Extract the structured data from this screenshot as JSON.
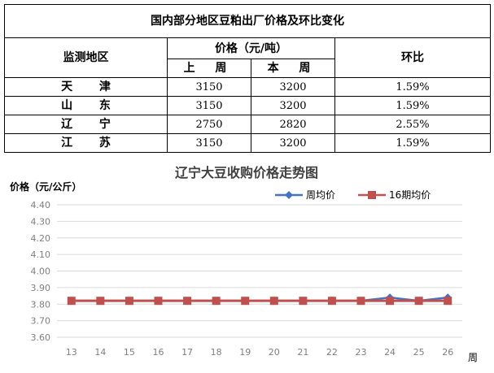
{
  "table": {
    "title": "国内部分地区豆粕出厂价格及环比变化",
    "header": {
      "region": "监测地区",
      "price": "价格（元/吨）",
      "last_week": "上  周",
      "this_week": "本  周",
      "change": "环比"
    },
    "rows": [
      {
        "region": "天 津",
        "last": "3150",
        "this": "3200",
        "change": "1.59%"
      },
      {
        "region": "山 东",
        "last": "3150",
        "this": "3200",
        "change": "1.59%"
      },
      {
        "region": "辽 宁",
        "last": "2750",
        "this": "2820",
        "change": "2.55%"
      },
      {
        "region": "江 苏",
        "last": "3150",
        "this": "3200",
        "change": "1.59%"
      }
    ]
  },
  "chart_data": {
    "type": "line",
    "title": "辽宁大豆收购价格走势图",
    "ylabel": "价格（元/公斤）",
    "xlabel": "周",
    "x": [
      "13",
      "14",
      "15",
      "16",
      "17",
      "18",
      "19",
      "20",
      "21",
      "22",
      "23",
      "24",
      "25",
      "26"
    ],
    "ylim": [
      3.6,
      4.4
    ],
    "yticks": [
      "4.40",
      "4.30",
      "4.20",
      "4.10",
      "4.00",
      "3.90",
      "3.80",
      "3.70",
      "3.60"
    ],
    "grid": true,
    "legend_position": "top-right",
    "series": [
      {
        "name": "周均价",
        "color": "#4472c4",
        "marker": "diamond",
        "values": [
          3.82,
          3.82,
          3.82,
          3.82,
          3.82,
          3.82,
          3.82,
          3.82,
          3.82,
          3.82,
          3.82,
          3.84,
          3.82,
          3.84
        ]
      },
      {
        "name": "16期均价",
        "color": "#c0504d",
        "marker": "square",
        "values": [
          3.82,
          3.82,
          3.82,
          3.82,
          3.82,
          3.82,
          3.82,
          3.82,
          3.82,
          3.82,
          3.82,
          3.82,
          3.82,
          3.82
        ]
      }
    ]
  }
}
